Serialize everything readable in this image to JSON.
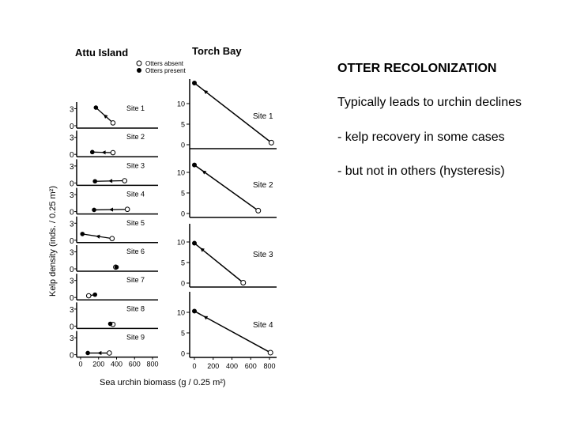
{
  "slide": {
    "title": "OTTER RECOLONIZATION",
    "lines": [
      "Typically leads to urchin declines",
      "- kelp recovery in some cases",
      "- but not in others (hysteresis)"
    ]
  },
  "chart_data": [
    {
      "type": "scatter",
      "title": "Attu Island",
      "legend": {
        "absent": "Otters absent",
        "present": "Otters present",
        "placement": "top-right"
      },
      "xlabel": "Sea urchin biomass (g / 0.25 m²)",
      "ylabel": "Kelp density (inds. / 0.25 m²)",
      "xlim": [
        0,
        800
      ],
      "ylim": [
        0,
        3
      ],
      "x_ticks": [
        "0",
        "200",
        "400",
        "600",
        "800"
      ],
      "y_ticks": [
        "0",
        "3"
      ],
      "series": [
        {
          "name": "Site 1",
          "absent": [
            360,
            0.5
          ],
          "present": [
            170,
            3.2
          ]
        },
        {
          "name": "Site 2",
          "absent": [
            360,
            0.3
          ],
          "present": [
            130,
            0.4
          ]
        },
        {
          "name": "Site 3",
          "absent": [
            490,
            0.4
          ],
          "present": [
            160,
            0.3
          ]
        },
        {
          "name": "Site 4",
          "absent": [
            520,
            0.4
          ],
          "present": [
            150,
            0.3
          ]
        },
        {
          "name": "Site 5",
          "absent": [
            350,
            0.3
          ],
          "present": [
            20,
            1.1
          ]
        },
        {
          "name": "Site 6",
          "absent": [
            390,
            0.3
          ],
          "present": [
            400,
            0.3
          ]
        },
        {
          "name": "Site 7",
          "absent": [
            90,
            0.3
          ],
          "present": [
            160,
            0.5
          ]
        },
        {
          "name": "Site 8",
          "absent": [
            360,
            0.3
          ],
          "present": [
            330,
            0.4
          ]
        },
        {
          "name": "Site 9",
          "absent": [
            320,
            0.3
          ],
          "present": [
            80,
            0.3
          ]
        }
      ]
    },
    {
      "type": "scatter",
      "title": "Torch Bay",
      "xlim": [
        0,
        800
      ],
      "ylim": [
        0,
        12
      ],
      "x_ticks": [
        "0",
        "200",
        "400",
        "600",
        "800"
      ],
      "y_ticks": [
        "0",
        "5",
        "10"
      ],
      "series": [
        {
          "name": "Site 1",
          "absent": [
            820,
            0.5
          ],
          "present": [
            0,
            15.0
          ]
        },
        {
          "name": "Site 2",
          "absent": [
            680,
            0.7
          ],
          "present": [
            0,
            11.8
          ]
        },
        {
          "name": "Site 3",
          "absent": [
            520,
            0.1
          ],
          "present": [
            0,
            9.7
          ]
        },
        {
          "name": "Site 4",
          "absent": [
            810,
            0.2
          ],
          "present": [
            0,
            10.3
          ]
        }
      ]
    }
  ]
}
